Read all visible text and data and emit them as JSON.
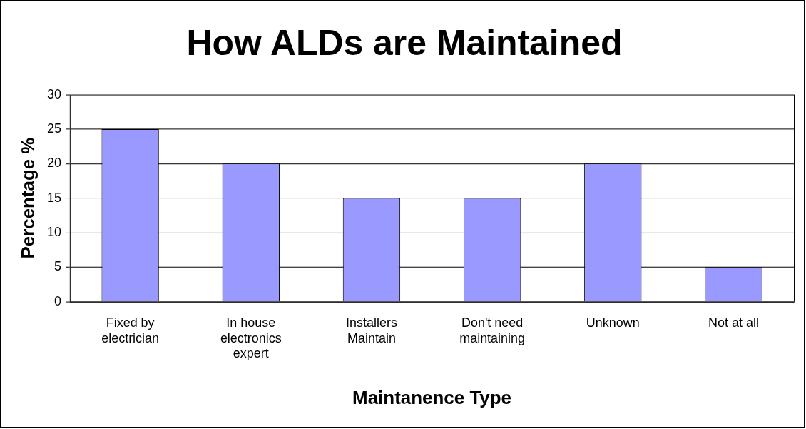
{
  "chart_data": {
    "type": "bar",
    "title": "How ALDs are Maintained",
    "xlabel": "Maintanence Type",
    "ylabel": "Percentage %",
    "categories": [
      "Fixed by electrician",
      "In house electronics expert",
      "Installers Maintain",
      "Don't need maintaining",
      "Unknown",
      "Not at all"
    ],
    "values": [
      25,
      20,
      15,
      15,
      20,
      5
    ],
    "color": "#9999ff",
    "ylim": [
      0,
      30
    ],
    "yticks": [
      0,
      5,
      10,
      15,
      20,
      25,
      30
    ],
    "grid": "y",
    "legend": false
  }
}
